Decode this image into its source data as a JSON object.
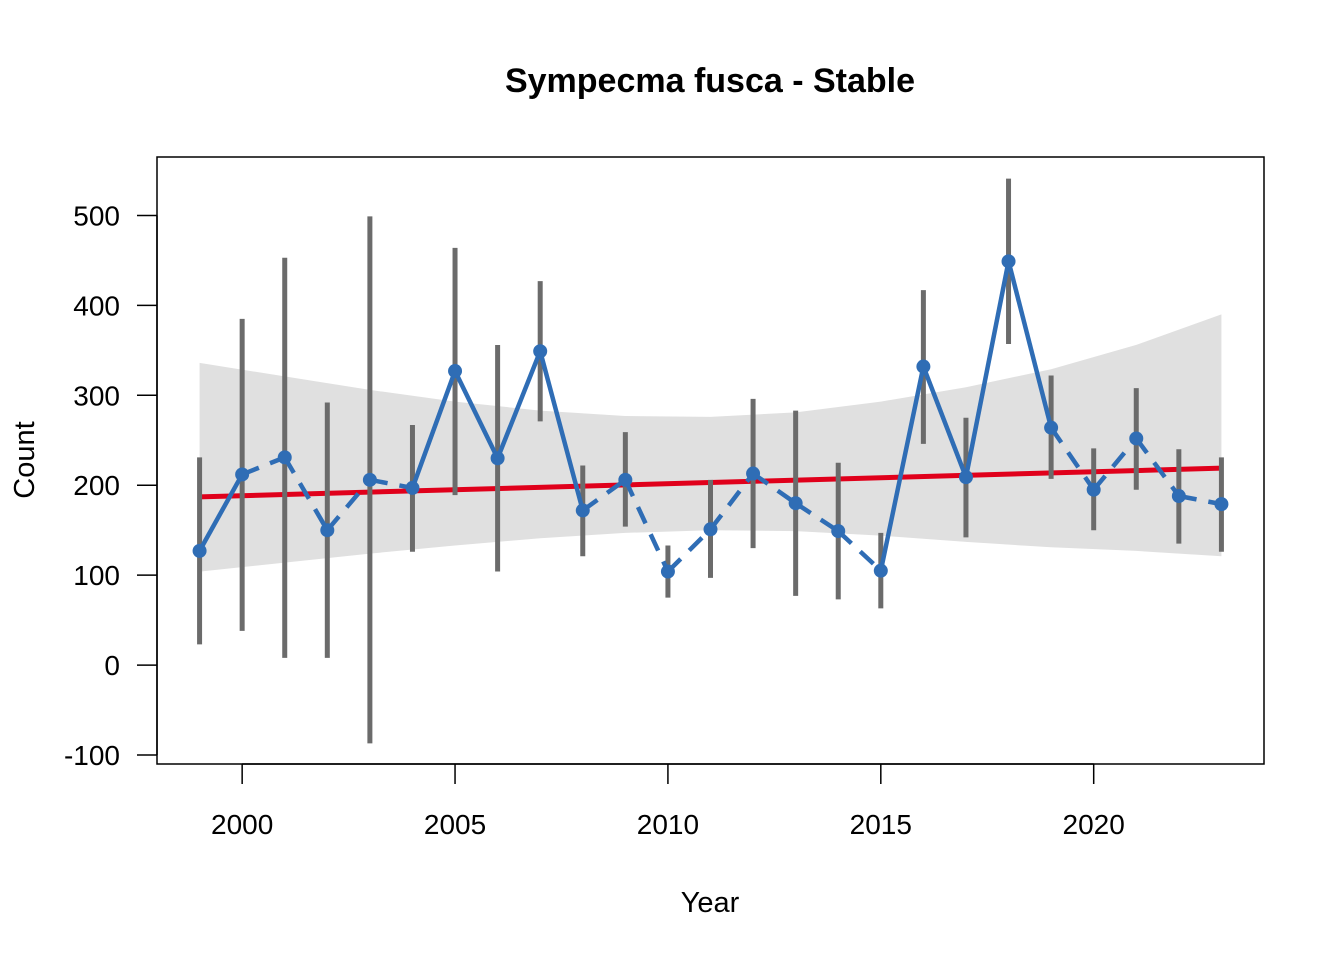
{
  "chart_data": {
    "type": "line",
    "title": "Sympecma fusca - Stable",
    "xlabel": "Year",
    "ylabel": "Count",
    "xlim": [
      1998.0,
      2024.0
    ],
    "ylim": [
      -110,
      565
    ],
    "x_ticks": [
      2000,
      2005,
      2010,
      2015,
      2020
    ],
    "y_ticks": [
      -100,
      0,
      100,
      200,
      300,
      400,
      500
    ],
    "x_tick_labels": [
      "2000",
      "2005",
      "2010",
      "2015",
      "2020"
    ],
    "y_tick_labels": [
      "-100",
      "0",
      "100",
      "200",
      "300",
      "400",
      "500"
    ],
    "grid": false,
    "legend": "none",
    "colors": {
      "series": "#2f6db5",
      "error_bars": "#6b6b6b",
      "trend": "#e0001b",
      "confidence_band": "#e0e0e0",
      "frame": "#000000"
    },
    "series": [
      {
        "x": [
          1999,
          2000,
          2001,
          2002,
          2003,
          2004,
          2005,
          2006,
          2007,
          2008,
          2009,
          2010,
          2011,
          2012,
          2013,
          2014,
          2015,
          2016,
          2017,
          2018,
          2019,
          2020,
          2021,
          2022,
          2023
        ],
        "values": [
          127,
          212,
          231,
          150,
          206,
          197,
          327,
          230,
          349,
          172,
          206,
          104,
          151,
          213,
          180,
          149,
          105,
          332,
          209,
          449,
          264,
          195,
          252,
          188,
          179
        ],
        "lower": [
          23,
          38,
          8,
          8,
          -87,
          126,
          189,
          104,
          271,
          121,
          154,
          75,
          97,
          130,
          77,
          73,
          63,
          246,
          142,
          357,
          207,
          150,
          195,
          135,
          126
        ],
        "upper": [
          231,
          385,
          453,
          292,
          499,
          267,
          464,
          356,
          427,
          222,
          259,
          133,
          206,
          296,
          283,
          225,
          147,
          417,
          275,
          541,
          322,
          241,
          308,
          240,
          231
        ],
        "segment_styles": [
          "solid",
          "dashed",
          "dashed",
          "dashed",
          "dashed",
          "solid",
          "solid",
          "solid",
          "solid",
          "dashed",
          "dashed",
          "dashed",
          "dashed",
          "dashed",
          "dashed",
          "dashed",
          "solid",
          "solid",
          "solid",
          "solid",
          "dashed",
          "dashed",
          "dashed",
          "dashed"
        ]
      }
    ],
    "trend": {
      "x": [
        1999,
        2023
      ],
      "values": [
        187,
        219
      ]
    },
    "confidence_band": {
      "x": [
        1999,
        2001,
        2003,
        2005,
        2007,
        2009,
        2011,
        2013,
        2015,
        2017,
        2019,
        2021,
        2023
      ],
      "upper": [
        336,
        321,
        306,
        293,
        283,
        277,
        276,
        281,
        293,
        309,
        329,
        356,
        390
      ],
      "lower": [
        104,
        114,
        124,
        133,
        141,
        147,
        150,
        149,
        144,
        137,
        131,
        127,
        121
      ]
    }
  }
}
